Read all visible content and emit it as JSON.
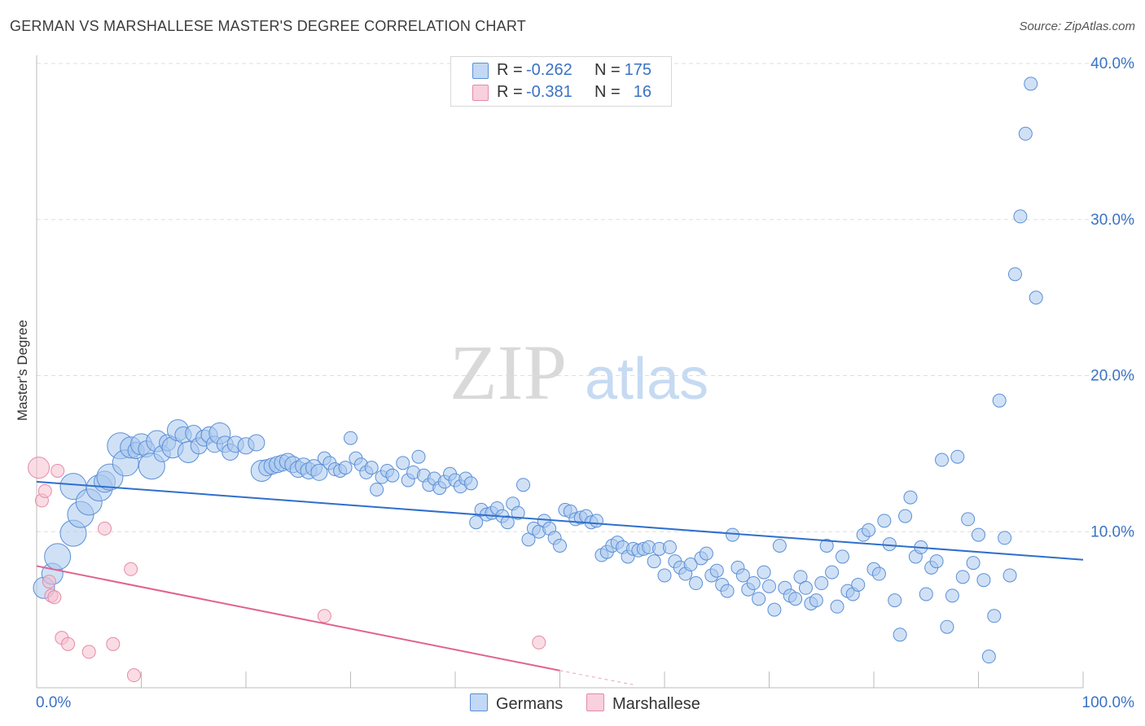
{
  "title": "GERMAN VS MARSHALLESE MASTER'S DEGREE CORRELATION CHART",
  "source": "Source: ZipAtlas.com",
  "watermark": {
    "zip": "ZIP",
    "atlas": "atlas"
  },
  "colors": {
    "german_fill": "#a9c8ee",
    "german_stroke": "#5b8fd6",
    "german_line": "#2f6fcc",
    "marsh_fill": "#f6bfd0",
    "marsh_stroke": "#e58aa6",
    "marsh_line": "#e0638c",
    "tick_text": "#3a72c4",
    "grid": "#dddddd"
  },
  "legend": {
    "rows": [
      {
        "r_label": "R =",
        "r_value": "-0.262",
        "n_label": "N =",
        "n_value": "175"
      },
      {
        "r_label": "R =",
        "r_value": "-0.381",
        "n_label": "N =",
        "n_value": "16"
      }
    ]
  },
  "bottom_legend": {
    "germans": "Germans",
    "marshallese": "Marshallese"
  },
  "chart_data": {
    "type": "scatter",
    "title": "GERMAN VS MARSHALLESE MASTER'S DEGREE CORRELATION CHART",
    "xlabel": "",
    "ylabel": "Master's Degree",
    "xlim": [
      0,
      100
    ],
    "ylim": [
      0,
      40
    ],
    "x_tick_labels": [
      "0.0%",
      "100.0%"
    ],
    "y_tick_labels": [
      "10.0%",
      "20.0%",
      "30.0%",
      "40.0%"
    ],
    "y_ticks": [
      10,
      20,
      30,
      40
    ],
    "grid": true,
    "legend_position": "top-center",
    "series": [
      {
        "name": "Germans",
        "r": -0.262,
        "n": 175,
        "trend": {
          "x0": 0,
          "y0": 13.2,
          "x1": 100,
          "y1": 8.2
        },
        "points": [
          [
            0.7,
            6.4,
            3
          ],
          [
            1.5,
            7.3,
            3
          ],
          [
            2,
            8.4,
            4
          ],
          [
            3.5,
            12.9,
            4
          ],
          [
            3.5,
            9.9,
            4
          ],
          [
            4.2,
            11.1,
            4
          ],
          [
            5,
            11.9,
            4
          ],
          [
            6,
            12.8,
            4
          ],
          [
            6.5,
            13.2,
            3
          ],
          [
            7,
            13.5,
            4
          ],
          [
            8,
            15.5,
            4
          ],
          [
            8.5,
            14.4,
            4
          ],
          [
            9,
            15.4,
            3
          ],
          [
            9.5,
            15.2,
            2
          ],
          [
            10,
            15.6,
            3
          ],
          [
            10.5,
            15.3,
            2
          ],
          [
            11,
            14.2,
            4
          ],
          [
            11.5,
            15.8,
            3
          ],
          [
            12,
            15.0,
            2
          ],
          [
            12.5,
            15.7,
            2
          ],
          [
            13,
            15.4,
            3
          ],
          [
            13.5,
            16.5,
            3
          ],
          [
            14,
            16.2,
            2
          ],
          [
            14.5,
            15.1,
            3
          ],
          [
            15,
            16.3,
            2
          ],
          [
            15.5,
            15.5,
            2
          ],
          [
            16,
            16.0,
            2
          ],
          [
            16.5,
            16.2,
            2
          ],
          [
            17,
            15.6,
            2
          ],
          [
            17.5,
            16.3,
            3
          ],
          [
            18,
            15.6,
            2
          ],
          [
            18.5,
            15.1,
            2
          ],
          [
            19,
            15.6,
            2
          ],
          [
            20,
            15.5,
            2
          ],
          [
            21,
            15.7,
            2
          ],
          [
            21.5,
            13.9,
            3
          ],
          [
            22,
            14.1,
            2
          ],
          [
            22.5,
            14.2,
            2
          ],
          [
            23,
            14.3,
            2
          ],
          [
            23.5,
            14.4,
            2
          ],
          [
            24,
            14.5,
            2
          ],
          [
            24.5,
            14.3,
            2
          ],
          [
            25,
            14.0,
            2
          ],
          [
            25.5,
            14.2,
            2
          ],
          [
            26,
            13.9,
            2
          ],
          [
            26.5,
            14.1,
            2
          ],
          [
            27,
            13.8,
            2
          ],
          [
            27.5,
            14.7,
            1
          ],
          [
            28,
            14.4,
            1
          ],
          [
            28.5,
            14.0,
            1
          ],
          [
            29,
            13.9,
            1
          ],
          [
            29.5,
            14.1,
            1
          ],
          [
            30,
            16.0,
            1
          ],
          [
            30.5,
            14.7,
            1
          ],
          [
            31,
            14.3,
            1
          ],
          [
            31.5,
            13.8,
            1
          ],
          [
            32,
            14.1,
            1
          ],
          [
            32.5,
            12.7,
            1
          ],
          [
            33,
            13.5,
            1
          ],
          [
            33.5,
            13.9,
            1
          ],
          [
            34,
            13.6,
            1
          ],
          [
            35,
            14.4,
            1
          ],
          [
            35.5,
            13.3,
            1
          ],
          [
            36,
            13.8,
            1
          ],
          [
            36.5,
            14.8,
            1
          ],
          [
            37,
            13.6,
            1
          ],
          [
            37.5,
            13.0,
            1
          ],
          [
            38,
            13.4,
            1
          ],
          [
            38.5,
            12.8,
            1
          ],
          [
            39,
            13.2,
            1
          ],
          [
            39.5,
            13.7,
            1
          ],
          [
            40,
            13.3,
            1
          ],
          [
            40.5,
            12.9,
            1
          ],
          [
            41,
            13.4,
            1
          ],
          [
            41.5,
            13.1,
            1
          ],
          [
            42,
            10.6,
            1
          ],
          [
            42.5,
            11.4,
            1
          ],
          [
            43,
            11.1,
            1
          ],
          [
            43.5,
            11.2,
            1
          ],
          [
            44,
            11.5,
            1
          ],
          [
            44.5,
            11.0,
            1
          ],
          [
            45,
            10.6,
            1
          ],
          [
            45.5,
            11.8,
            1
          ],
          [
            46,
            11.2,
            1
          ],
          [
            46.5,
            13.0,
            1
          ],
          [
            47,
            9.5,
            1
          ],
          [
            47.5,
            10.2,
            1
          ],
          [
            48,
            10.0,
            1
          ],
          [
            48.5,
            10.7,
            1
          ],
          [
            49,
            10.2,
            1
          ],
          [
            49.5,
            9.6,
            1
          ],
          [
            50,
            9.1,
            1
          ],
          [
            50.5,
            11.4,
            1
          ],
          [
            51,
            11.3,
            1
          ],
          [
            51.5,
            10.8,
            1
          ],
          [
            52,
            10.9,
            1
          ],
          [
            52.5,
            11.0,
            1
          ],
          [
            53,
            10.6,
            1
          ],
          [
            53.5,
            10.7,
            1
          ],
          [
            54,
            8.5,
            1
          ],
          [
            54.5,
            8.7,
            1
          ],
          [
            55,
            9.1,
            1
          ],
          [
            55.5,
            9.3,
            1
          ],
          [
            56,
            9.0,
            1
          ],
          [
            56.5,
            8.4,
            1
          ],
          [
            57,
            8.9,
            1
          ],
          [
            57.5,
            8.8,
            1
          ],
          [
            58,
            8.9,
            1
          ],
          [
            58.5,
            9.0,
            1
          ],
          [
            59,
            8.1,
            1
          ],
          [
            59.5,
            8.9,
            1
          ],
          [
            60,
            7.2,
            1
          ],
          [
            60.5,
            9.0,
            1
          ],
          [
            61,
            8.1,
            1
          ],
          [
            61.5,
            7.7,
            1
          ],
          [
            62,
            7.3,
            1
          ],
          [
            62.5,
            7.9,
            1
          ],
          [
            63,
            6.7,
            1
          ],
          [
            63.5,
            8.3,
            1
          ],
          [
            64,
            8.6,
            1
          ],
          [
            64.5,
            7.2,
            1
          ],
          [
            65,
            7.5,
            1
          ],
          [
            65.5,
            6.6,
            1
          ],
          [
            66,
            6.2,
            1
          ],
          [
            66.5,
            9.8,
            1
          ],
          [
            67,
            7.7,
            1
          ],
          [
            67.5,
            7.2,
            1
          ],
          [
            68,
            6.3,
            1
          ],
          [
            68.5,
            6.7,
            1
          ],
          [
            69,
            5.7,
            1
          ],
          [
            69.5,
            7.4,
            1
          ],
          [
            70,
            6.5,
            1
          ],
          [
            70.5,
            5.0,
            1
          ],
          [
            71,
            9.1,
            1
          ],
          [
            71.5,
            6.4,
            1
          ],
          [
            72,
            5.9,
            1
          ],
          [
            72.5,
            5.7,
            1
          ],
          [
            73,
            7.1,
            1
          ],
          [
            73.5,
            6.4,
            1
          ],
          [
            74,
            5.4,
            1
          ],
          [
            74.5,
            5.6,
            1
          ],
          [
            75,
            6.7,
            1
          ],
          [
            75.5,
            9.1,
            1
          ],
          [
            76,
            7.4,
            1
          ],
          [
            76.5,
            5.2,
            1
          ],
          [
            77,
            8.4,
            1
          ],
          [
            77.5,
            6.2,
            1
          ],
          [
            78,
            6.0,
            1
          ],
          [
            78.5,
            6.6,
            1
          ],
          [
            79,
            9.8,
            1
          ],
          [
            79.5,
            10.1,
            1
          ],
          [
            80,
            7.6,
            1
          ],
          [
            80.5,
            7.3,
            1
          ],
          [
            81,
            10.7,
            1
          ],
          [
            81.5,
            9.2,
            1
          ],
          [
            82,
            5.6,
            1
          ],
          [
            82.5,
            3.4,
            1
          ],
          [
            83,
            11.0,
            1
          ],
          [
            83.5,
            12.2,
            1
          ],
          [
            84,
            8.4,
            1
          ],
          [
            84.5,
            9.0,
            1
          ],
          [
            85,
            6.0,
            1
          ],
          [
            85.5,
            7.7,
            1
          ],
          [
            86,
            8.1,
            1
          ],
          [
            86.5,
            14.6,
            1
          ],
          [
            87,
            3.9,
            1
          ],
          [
            87.5,
            5.9,
            1
          ],
          [
            88,
            14.8,
            1
          ],
          [
            88.5,
            7.1,
            1
          ],
          [
            89,
            10.8,
            1
          ],
          [
            89.5,
            8.0,
            1
          ],
          [
            90,
            9.8,
            1
          ],
          [
            90.5,
            6.9,
            1
          ],
          [
            91,
            2.0,
            1
          ],
          [
            91.5,
            4.6,
            1
          ],
          [
            92,
            18.4,
            1
          ],
          [
            92.5,
            9.6,
            1
          ],
          [
            93,
            7.2,
            1
          ],
          [
            93.5,
            26.5,
            1
          ],
          [
            94,
            30.2,
            1
          ],
          [
            94.5,
            35.5,
            1
          ],
          [
            95,
            38.7,
            1
          ],
          [
            95.5,
            25.0,
            1
          ]
        ]
      },
      {
        "name": "Marshallese",
        "r": -0.381,
        "n": 16,
        "trend": {
          "x0": 0,
          "y0": 7.8,
          "x1": 50,
          "y1": 1.1
        },
        "trend_dashed_extension": {
          "x0": 50,
          "y0": 1.1,
          "x1": 57,
          "y1": 0.2
        },
        "points": [
          [
            0.2,
            14.1,
            3
          ],
          [
            0.5,
            12.0,
            1
          ],
          [
            0.8,
            12.6,
            1
          ],
          [
            1.2,
            6.8,
            1
          ],
          [
            1.4,
            5.9,
            1
          ],
          [
            1.7,
            5.8,
            1
          ],
          [
            2.0,
            13.9,
            1
          ],
          [
            2.4,
            3.2,
            1
          ],
          [
            3.0,
            2.8,
            1
          ],
          [
            5.0,
            2.3,
            1
          ],
          [
            6.5,
            10.2,
            1
          ],
          [
            7.3,
            2.8,
            1
          ],
          [
            9.0,
            7.6,
            1
          ],
          [
            9.3,
            0.8,
            1
          ],
          [
            27.5,
            4.6,
            1
          ],
          [
            48.0,
            2.9,
            1
          ]
        ]
      }
    ]
  }
}
